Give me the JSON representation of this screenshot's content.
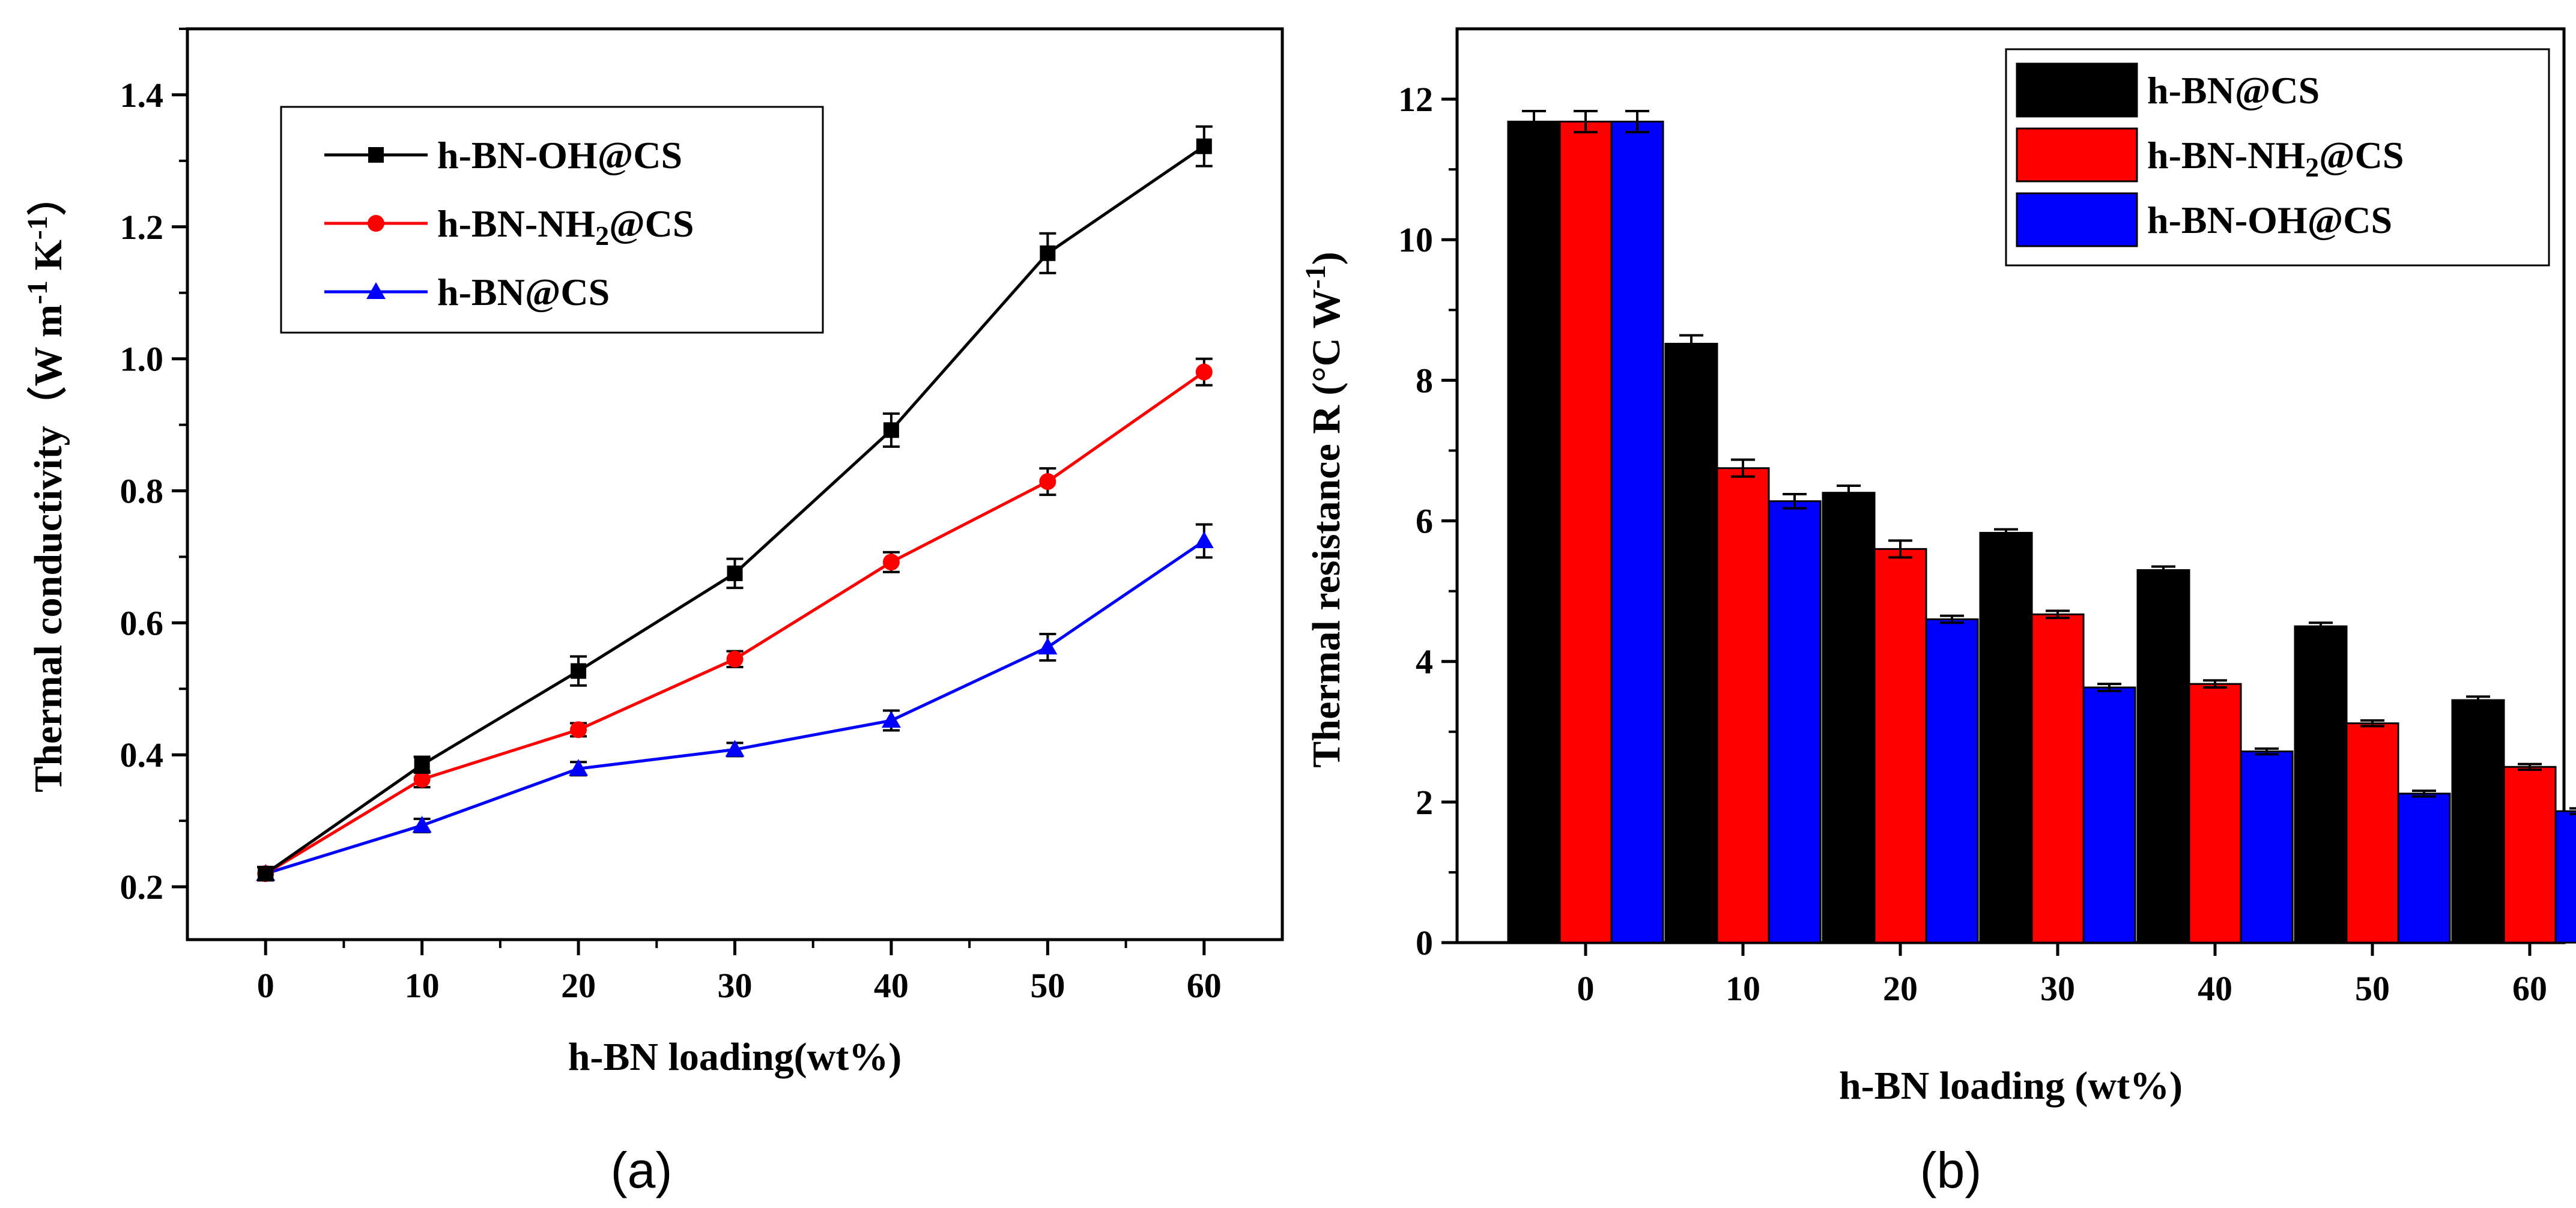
{
  "chart_data": [
    {
      "type": "line",
      "panel": "(a)",
      "xlabel": "h-BN loading(wt%)",
      "ylabel": {
        "base": "Thermal conductivity（W m",
        "e1": "-1",
        "mid": " K",
        "e2": "-1",
        "end": "）"
      },
      "x": [
        0,
        10,
        20,
        30,
        40,
        50,
        60
      ],
      "xticks": [
        "0",
        "10",
        "20",
        "30",
        "40",
        "50",
        "60"
      ],
      "yticks": [
        "0.2",
        "0.4",
        "0.6",
        "0.8",
        "1.0",
        "1.2",
        "1.4"
      ],
      "xlim": [
        -5,
        65
      ],
      "ylim": [
        0.12,
        1.5
      ],
      "legend_position": "top-left",
      "series": [
        {
          "name": "h-BN-OH@CS",
          "label": {
            "base": "h-BN-OH@CS"
          },
          "color": "#000000",
          "marker": "square",
          "values": [
            0.22,
            0.385,
            0.527,
            0.675,
            0.892,
            1.16,
            1.322
          ],
          "errors": [
            0.01,
            0.012,
            0.022,
            0.022,
            0.025,
            0.03,
            0.03
          ]
        },
        {
          "name": "h-BN-NH2@CS",
          "label": {
            "base": "h-BN-NH",
            "sub": "2",
            "rest": "@CS"
          },
          "color": "#ff0000",
          "marker": "circle",
          "values": [
            0.22,
            0.363,
            0.438,
            0.545,
            0.692,
            0.814,
            0.98
          ],
          "errors": [
            0.01,
            0.012,
            0.01,
            0.012,
            0.015,
            0.02,
            0.02
          ]
        },
        {
          "name": "h-BN@CS",
          "label": {
            "base": "h-BN@CS"
          },
          "color": "#0000ff",
          "marker": "triangle",
          "values": [
            0.22,
            0.293,
            0.379,
            0.408,
            0.452,
            0.563,
            0.724
          ],
          "errors": [
            0.01,
            0.01,
            0.01,
            0.01,
            0.015,
            0.02,
            0.025
          ]
        }
      ]
    },
    {
      "type": "bar",
      "panel": "(b)",
      "xlabel": "h-BN loading (wt%)",
      "ylabel": {
        "base": "Thermal resistance R (°C W",
        "e1": "-1",
        "end": ")"
      },
      "categories": [
        "0",
        "10",
        "20",
        "30",
        "40",
        "50",
        "60"
      ],
      "yticks": [
        "0",
        "2",
        "4",
        "6",
        "8",
        "10",
        "12"
      ],
      "ylim": [
        0,
        13
      ],
      "legend_position": "top-right",
      "series": [
        {
          "name": "h-BN@CS",
          "label": {
            "base": "h-BN@CS"
          },
          "color": "#000000",
          "values": [
            11.68,
            8.52,
            6.4,
            5.83,
            5.3,
            4.5,
            3.45
          ],
          "errors": [
            0.15,
            0.12,
            0.1,
            0.05,
            0.05,
            0.05,
            0.05
          ]
        },
        {
          "name": "h-BN-NH2@CS",
          "label": {
            "base": "h-BN-NH",
            "sub": "2",
            "rest": "@CS"
          },
          "color": "#ff0000",
          "values": [
            11.68,
            6.75,
            5.6,
            4.67,
            3.68,
            3.12,
            2.5
          ],
          "errors": [
            0.15,
            0.12,
            0.12,
            0.05,
            0.05,
            0.04,
            0.04
          ]
        },
        {
          "name": "h-BN-OH@CS",
          "label": {
            "base": "h-BN-OH@CS"
          },
          "color": "#0000ff",
          "values": [
            11.68,
            6.28,
            4.6,
            3.63,
            2.72,
            2.12,
            1.87
          ],
          "errors": [
            0.15,
            0.1,
            0.05,
            0.05,
            0.04,
            0.04,
            0.04
          ]
        }
      ]
    }
  ]
}
